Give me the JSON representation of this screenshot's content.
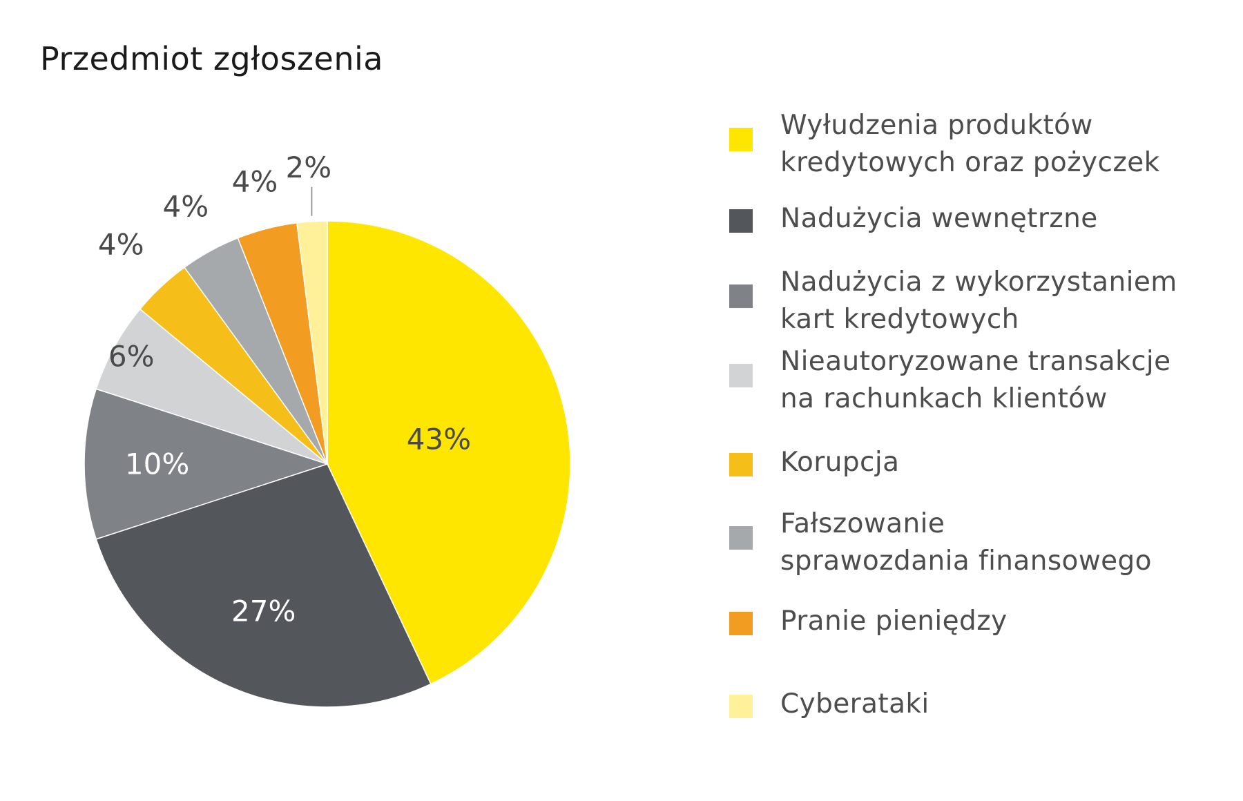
{
  "chart_data": {
    "type": "pie",
    "title": "Przedmiot zgłoszenia",
    "categories": [
      "Wyłudzenia produktów kredytowych oraz pożyczek",
      "Nadużycia wewnętrzne",
      "Nadużycia z wykorzystaniem kart kredytowych",
      "Nieautoryzowane transakcje na rachunkach klientów",
      "Korupcja",
      "Fałszowanie sprawozdania finansowego",
      "Pranie pieniędzy",
      "Cyberataki"
    ],
    "values": [
      43,
      27,
      10,
      6,
      4,
      4,
      4,
      2
    ],
    "labels": [
      "43%",
      "27%",
      "10%",
      "6%",
      "4%",
      "4%",
      "4%",
      "2%"
    ],
    "colors": [
      "#FFE600",
      "#53565A",
      "#7F8286",
      "#D1D3D4",
      "#F6BE18",
      "#A5A9AC",
      "#F29C22",
      "#FFF09A"
    ],
    "label_colors": [
      "#4a4a4a",
      "#ffffff",
      "#ffffff",
      "#4a4a4a",
      "#4a4a4a",
      "#4a4a4a",
      "#4a4a4a",
      "#4a4a4a"
    ],
    "start": "12 o'clock, clockwise",
    "legend_position": "right"
  },
  "legend": {
    "items": [
      {
        "lines": [
          "Wyłudzenia produktów",
          "kredytowych oraz pożyczek"
        ],
        "color": "#FFE600"
      },
      {
        "lines": [
          "Nadużycia wewnętrzne"
        ],
        "color": "#53565A"
      },
      {
        "lines": [
          "Nadużycia z wykorzystaniem",
          "kart kredytowych"
        ],
        "color": "#7F8286"
      },
      {
        "lines": [
          "Nieautoryzowane transakcje",
          "na rachunkach klientów"
        ],
        "color": "#D1D3D4"
      },
      {
        "lines": [
          "Korupcja"
        ],
        "color": "#F6BE18"
      },
      {
        "lines": [
          "Fałszowanie",
          "sprawozdania finansowego"
        ],
        "color": "#A5A9AC"
      },
      {
        "lines": [
          "Pranie pieniędzy"
        ],
        "color": "#F29C22"
      },
      {
        "lines": [
          "Cyberataki"
        ],
        "color": "#FFF09A"
      }
    ]
  }
}
